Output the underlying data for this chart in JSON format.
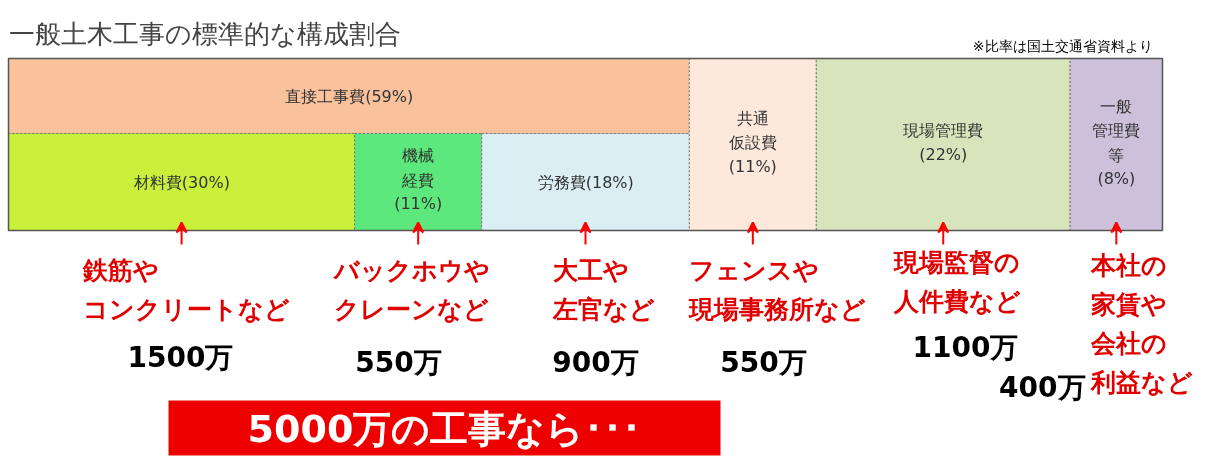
{
  "chart_data": {
    "type": "other",
    "title": "一般土木工事の標準的な構成割合",
    "categories": [
      "直接工事費",
      "材料費",
      "機械経費",
      "労務費",
      "共通仮設費",
      "現場管理費",
      "一般管理費等"
    ],
    "values": [
      59,
      30,
      11,
      18,
      11,
      22,
      8
    ],
    "value_labels": [
      "(59%)",
      "(30%)",
      "(11%)",
      "(18%)",
      "(11%)",
      "(22%)",
      "(8%)"
    ],
    "colors": [
      "#f9c29d",
      "#c9f03a",
      "#5ce87c",
      "#daeef3",
      "#fde9dc",
      "#d7e4bc",
      "#ccc0da"
    ],
    "annotations": [
      "鉄筋やコンクリートなど",
      "1500万",
      "バックホウやクレーンなど",
      "550万",
      "大工や左官など",
      "900万",
      "フェンスや現場事務所など",
      "550万",
      "現場監督の人件費など",
      "1100万",
      "本社の家賃や会社の利益など",
      "400万",
      "5000万の工事なら･･･",
      "※比率は国土交通省資料より"
    ]
  }
}
